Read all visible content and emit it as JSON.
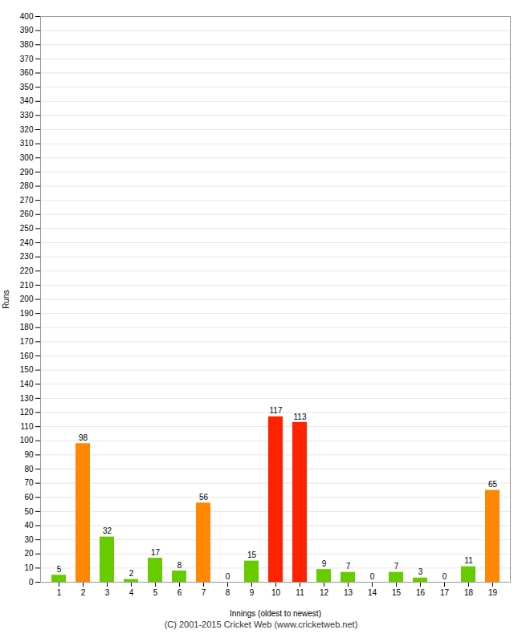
{
  "chart_data": {
    "type": "bar",
    "xlabel": "Innings (oldest to newest)",
    "ylabel": "Runs",
    "caption": "(C) 2001-2015 Cricket Web (www.cricketweb.net)",
    "categories": [
      "1",
      "2",
      "3",
      "4",
      "5",
      "6",
      "7",
      "8",
      "9",
      "10",
      "11",
      "12",
      "13",
      "14",
      "15",
      "16",
      "17",
      "18",
      "19"
    ],
    "values": [
      5,
      98,
      32,
      2,
      17,
      8,
      56,
      0,
      15,
      117,
      113,
      9,
      7,
      0,
      7,
      3,
      0,
      11,
      65
    ],
    "colors": [
      "#66cc00",
      "#ff8800",
      "#66cc00",
      "#66cc00",
      "#66cc00",
      "#66cc00",
      "#ff8800",
      "#66cc00",
      "#66cc00",
      "#ff2200",
      "#ff2200",
      "#66cc00",
      "#66cc00",
      "#66cc00",
      "#66cc00",
      "#66cc00",
      "#66cc00",
      "#66cc00",
      "#ff8800"
    ],
    "ylim": [
      0,
      400
    ],
    "yticks": [
      0,
      10,
      20,
      30,
      40,
      50,
      60,
      70,
      80,
      90,
      100,
      110,
      120,
      130,
      140,
      150,
      160,
      170,
      180,
      190,
      200,
      210,
      220,
      230,
      240,
      250,
      260,
      270,
      280,
      290,
      300,
      310,
      320,
      330,
      340,
      350,
      360,
      370,
      380,
      390,
      400
    ],
    "grid": true,
    "data_labels": true
  }
}
